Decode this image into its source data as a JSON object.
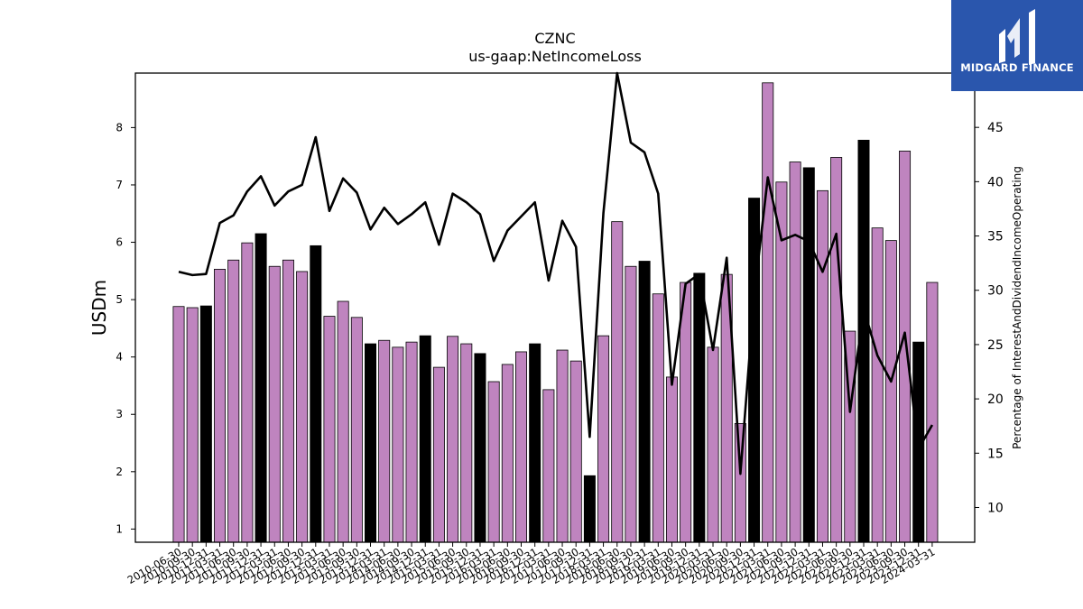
{
  "chart_data": {
    "type": "bar",
    "title": "CZNC",
    "subtitle": "us-gaap:NetIncomeLoss",
    "ylabel": "USDm",
    "y2label": "Percentage of InterestAndDividendIncomeOperating",
    "ylim": [
      0.77,
      8.95
    ],
    "y2lim": [
      6.8,
      50.0
    ],
    "yticks": [
      1,
      2,
      3,
      4,
      5,
      6,
      7,
      8
    ],
    "y2ticks": [
      10,
      15,
      20,
      25,
      30,
      35,
      40,
      45
    ],
    "categories": [
      "2010-06-30",
      "2010-09-30",
      "2010-12-31",
      "2011-03-31",
      "2011-06-30",
      "2011-09-30",
      "2011-12-31",
      "2012-03-31",
      "2012-06-30",
      "2012-09-30",
      "2012-12-31",
      "2013-03-31",
      "2013-06-30",
      "2013-09-30",
      "2013-12-31",
      "2014-03-31",
      "2014-06-30",
      "2014-09-30",
      "2014-12-31",
      "2015-03-31",
      "2015-06-30",
      "2015-09-30",
      "2015-12-31",
      "2016-03-31",
      "2016-06-30",
      "2016-09-30",
      "2016-12-31",
      "2017-03-31",
      "2017-06-30",
      "2017-09-30",
      "2017-12-31",
      "2018-03-31",
      "2018-06-30",
      "2018-09-30",
      "2018-12-31",
      "2019-03-31",
      "2019-06-30",
      "2019-09-30",
      "2019-12-31",
      "2020-03-31",
      "2020-06-30",
      "2020-09-30",
      "2020-12-31",
      "2021-03-31",
      "2021-06-30",
      "2021-09-30",
      "2021-12-31",
      "2022-03-31",
      "2022-06-30",
      "2022-09-30",
      "2022-12-31",
      "2023-03-31",
      "2023-06-30",
      "2023-09-30",
      "2023-12-31",
      "2024-03-31"
    ],
    "tick_labels": [
      "2010-06-30",
      "2010-09-30",
      "2010-12-31",
      "2011-03-31",
      "2011-06-30",
      "2011-09-30",
      "2011-12-31",
      "2012-03-31",
      "2012-06-30",
      "2012-09-30",
      "2012-12-31",
      "2013-03-31",
      "2013-06-30",
      "2013-09-30",
      "2013-12-31",
      "2014-03-31",
      "2014-06-30",
      "2014-09-30",
      "2014-12-31",
      "2015-03-31",
      "2015-06-30",
      "2015-09-30",
      "2015-12-31",
      "2016-03-31",
      "2016-06-30",
      "2016-09-30",
      "2016-12-31",
      "2017-03-31",
      "2017-06-30",
      "2017-09-30",
      "2017-12-31",
      "2018-03-31",
      "2018-06-30",
      "2018-09-30",
      "2018-12-31",
      "2019-03-31",
      "2019-06-30",
      "2019-09-30",
      "2019-12-31",
      "2020-03-31",
      "2020-06-30",
      "2020-09-30",
      "2020-12-31",
      "2021-03-31",
      "2021-06-30",
      "2021-09-30",
      "2021-12-31",
      "2022-03-31",
      "2022-06-30",
      "2022-09-30",
      "2022-12-31",
      "2023-03-31",
      "2023-06-30",
      "2023-09-30",
      "2023-12-31",
      "2024-03-31"
    ],
    "values": [
      4.88,
      4.86,
      4.89,
      5.53,
      5.69,
      5.99,
      6.15,
      5.58,
      5.69,
      5.49,
      5.94,
      4.71,
      4.97,
      4.69,
      4.23,
      4.29,
      4.17,
      4.26,
      4.37,
      3.82,
      4.36,
      4.23,
      4.06,
      3.57,
      3.87,
      4.09,
      4.23,
      3.43,
      4.12,
      3.93,
      1.93,
      4.37,
      6.36,
      5.58,
      5.67,
      5.1,
      3.65,
      5.3,
      5.46,
      4.17,
      5.44,
      2.84,
      6.77,
      8.78,
      7.05,
      7.4,
      7.3,
      6.9,
      7.48,
      4.45,
      7.78,
      6.25,
      6.03,
      7.59,
      4.26,
      5.3
    ],
    "q4_flags": [
      0,
      0,
      1,
      0,
      0,
      0,
      1,
      0,
      0,
      0,
      1,
      0,
      0,
      0,
      1,
      0,
      0,
      0,
      1,
      0,
      0,
      0,
      1,
      0,
      0,
      0,
      1,
      0,
      0,
      0,
      1,
      0,
      0,
      0,
      1,
      0,
      0,
      0,
      1,
      0,
      0,
      0,
      1,
      0,
      0,
      0,
      1,
      0,
      0,
      0,
      1,
      0,
      0,
      0,
      1,
      0
    ],
    "line_series": {
      "axis": "right",
      "values": [
        31.7,
        31.4,
        31.5,
        36.2,
        36.9,
        39.1,
        40.5,
        37.8,
        39.1,
        39.7,
        44.1,
        37.3,
        40.3,
        39.0,
        35.6,
        37.6,
        36.1,
        37.0,
        38.1,
        34.2,
        38.9,
        38.1,
        37.0,
        32.7,
        35.5,
        36.8,
        38.1,
        30.9,
        36.4,
        34.0,
        16.5,
        37.1,
        50.4,
        43.6,
        42.7,
        38.9,
        21.3,
        30.6,
        31.5,
        24.5,
        33.0,
        13.1,
        29.4,
        40.4,
        34.6,
        35.1,
        34.5,
        31.7,
        35.2,
        18.8,
        28.3,
        24.0,
        21.6,
        26.1,
        15.4,
        17.6
      ]
    },
    "colors": {
      "bar": "#bf84bf",
      "bar_q4": "#000000",
      "line": "#000000"
    },
    "grid": false,
    "legend": "none"
  },
  "logo": {
    "text": "MIDGARD FINANCE",
    "bg": "#2a56ad"
  }
}
